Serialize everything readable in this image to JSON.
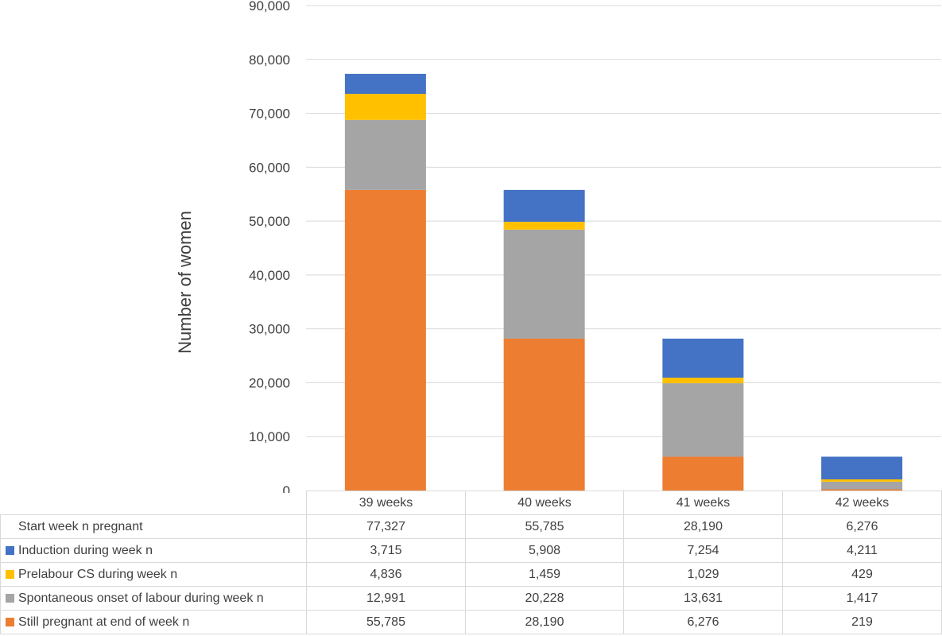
{
  "chart_data": {
    "type": "bar",
    "stacked": true,
    "ylabel": "Number of women",
    "ylim": [
      0,
      90000
    ],
    "yticks": [
      0,
      10000,
      20000,
      30000,
      40000,
      50000,
      60000,
      70000,
      80000,
      90000
    ],
    "ytick_labels": [
      "0",
      "10,000",
      "20,000",
      "30,000",
      "40,000",
      "50,000",
      "60,000",
      "70,000",
      "80,000",
      "90,000"
    ],
    "grid": true,
    "categories": [
      "39 weeks",
      "40 weeks",
      "41 weeks",
      "42 weeks"
    ],
    "table": {
      "start_row": {
        "label": "Start week n pregnant",
        "values": [
          77327,
          55785,
          28190,
          6276
        ],
        "display": [
          "77,327",
          "55,785",
          "28,190",
          "6,276"
        ]
      }
    },
    "series": [
      {
        "name": "Induction during week n",
        "color": "#4472C4",
        "values": [
          3715,
          5908,
          7254,
          4211
        ],
        "display": [
          "3,715",
          "5,908",
          "7,254",
          "4,211"
        ]
      },
      {
        "name": "Prelabour CS during week n",
        "color": "#FFC000",
        "values": [
          4836,
          1459,
          1029,
          429
        ],
        "display": [
          "4,836",
          "1,459",
          "1,029",
          "429"
        ]
      },
      {
        "name": "Spontaneous onset of labour during week n",
        "color": "#A5A5A5",
        "values": [
          12991,
          20228,
          13631,
          1417
        ],
        "display": [
          "12,991",
          "20,228",
          "13,631",
          "1,417"
        ]
      },
      {
        "name": "Still pregnant at end of week n",
        "color": "#ED7D31",
        "values": [
          55785,
          28190,
          6276,
          219
        ],
        "display": [
          "55,785",
          "28,190",
          "6,276",
          "219"
        ]
      }
    ]
  }
}
